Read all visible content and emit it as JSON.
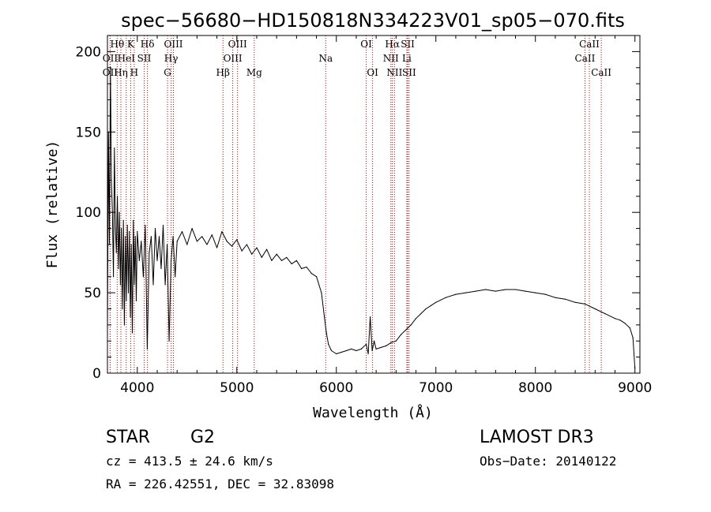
{
  "chart_data": {
    "type": "line",
    "title": "spec−56680−HD150818N334223V01_sp05−070.fits",
    "xlabel": "Wavelength (Å)",
    "ylabel": "Flux (relative)",
    "xlim": [
      3700,
      9050
    ],
    "ylim": [
      0,
      210
    ],
    "xticks": [
      4000,
      5000,
      6000,
      7000,
      8000,
      9000
    ],
    "yticks": [
      0,
      50,
      100,
      150,
      200
    ],
    "series": [
      {
        "name": "flux",
        "x": [
          3700,
          3710,
          3720,
          3730,
          3740,
          3750,
          3760,
          3770,
          3780,
          3790,
          3800,
          3810,
          3820,
          3830,
          3840,
          3850,
          3860,
          3870,
          3880,
          3890,
          3900,
          3910,
          3920,
          3930,
          3940,
          3950,
          3960,
          3970,
          3980,
          3990,
          4000,
          4020,
          4040,
          4060,
          4080,
          4100,
          4120,
          4140,
          4160,
          4180,
          4200,
          4220,
          4240,
          4260,
          4280,
          4300,
          4320,
          4340,
          4360,
          4380,
          4400,
          4450,
          4500,
          4550,
          4600,
          4650,
          4700,
          4750,
          4800,
          4850,
          4900,
          4950,
          5000,
          5050,
          5100,
          5150,
          5200,
          5250,
          5300,
          5350,
          5400,
          5450,
          5500,
          5550,
          5600,
          5650,
          5700,
          5750,
          5800,
          5850,
          5880,
          5900,
          5920,
          5950,
          6000,
          6050,
          6100,
          6150,
          6200,
          6250,
          6300,
          6320,
          6340,
          6360,
          6380,
          6400,
          6450,
          6500,
          6550,
          6600,
          6650,
          6700,
          6750,
          6800,
          6850,
          6900,
          6950,
          7000,
          7100,
          7200,
          7300,
          7400,
          7500,
          7600,
          7700,
          7800,
          7900,
          8000,
          8100,
          8200,
          8300,
          8400,
          8500,
          8600,
          8700,
          8800,
          8850,
          8900,
          8950,
          8980,
          9000
        ],
        "values": [
          25,
          150,
          80,
          190,
          120,
          100,
          60,
          140,
          90,
          75,
          110,
          65,
          100,
          55,
          90,
          40,
          95,
          30,
          85,
          45,
          92,
          50,
          88,
          35,
          80,
          25,
          95,
          55,
          85,
          45,
          88,
          70,
          82,
          60,
          92,
          15,
          75,
          85,
          55,
          90,
          70,
          85,
          65,
          92,
          55,
          80,
          20,
          70,
          85,
          60,
          82,
          88,
          80,
          90,
          82,
          85,
          80,
          86,
          78,
          88,
          82,
          79,
          83,
          76,
          80,
          74,
          78,
          72,
          77,
          70,
          74,
          70,
          72,
          68,
          70,
          65,
          66,
          62,
          60,
          50,
          35,
          25,
          18,
          14,
          12,
          13,
          14,
          15,
          14,
          15,
          18,
          12,
          35,
          14,
          20,
          15,
          16,
          17,
          19,
          20,
          24,
          27,
          30,
          34,
          37,
          40,
          42,
          44,
          47,
          49,
          50,
          51,
          52,
          51,
          52,
          52,
          51,
          50,
          49,
          47,
          46,
          44,
          43,
          40,
          37,
          34,
          33,
          31,
          28,
          22,
          3
        ]
      }
    ],
    "line_markers": [
      {
        "label": "Hθ",
        "x": 3798,
        "row": 0
      },
      {
        "label": "K",
        "x": 3934,
        "row": 0
      },
      {
        "label": "Hδ",
        "x": 4102,
        "row": 0
      },
      {
        "label": "OIII",
        "x": 4363,
        "row": 0
      },
      {
        "label": "OIII",
        "x": 5007,
        "row": 0
      },
      {
        "label": "OI",
        "x": 6300,
        "row": 0
      },
      {
        "label": "Hα",
        "x": 6563,
        "row": 0
      },
      {
        "label": "SII",
        "x": 6717,
        "row": 0
      },
      {
        "label": "CaII",
        "x": 8542,
        "row": 0
      },
      {
        "label": "OII",
        "x": 3727,
        "row": 1
      },
      {
        "label": "HeI",
        "x": 3889,
        "row": 1
      },
      {
        "label": "SII",
        "x": 4069,
        "row": 1
      },
      {
        "label": "Hγ",
        "x": 4340,
        "row": 1
      },
      {
        "label": "OIII",
        "x": 4959,
        "row": 1
      },
      {
        "label": "Na",
        "x": 5893,
        "row": 1
      },
      {
        "label": "NII",
        "x": 6548,
        "row": 1
      },
      {
        "label": "Li",
        "x": 6708,
        "row": 1
      },
      {
        "label": "CaII",
        "x": 8498,
        "row": 1
      },
      {
        "label": "OII",
        "x": 3727,
        "row": 2
      },
      {
        "label": "Hη",
        "x": 3835,
        "row": 2
      },
      {
        "label": "H",
        "x": 3969,
        "row": 2
      },
      {
        "label": "G",
        "x": 4304,
        "row": 2
      },
      {
        "label": "Hβ",
        "x": 4861,
        "row": 2
      },
      {
        "label": "Mg",
        "x": 5175,
        "row": 2
      },
      {
        "label": "OI",
        "x": 6364,
        "row": 2
      },
      {
        "label": "NII",
        "x": 6584,
        "row": 2
      },
      {
        "label": "SII",
        "x": 6731,
        "row": 2
      },
      {
        "label": "CaII",
        "x": 8662,
        "row": 2
      }
    ],
    "marker_color": "#c00000",
    "line_color": "#000000"
  },
  "info": {
    "object_class": "STAR",
    "subclass": "G2",
    "survey": "LAMOST DR3",
    "redshift": "cz = 413.5 ± 24.6 km/s",
    "obs_date": "Obs−Date: 20140122",
    "coords": "RA = 226.42551, DEC =  32.83098"
  }
}
